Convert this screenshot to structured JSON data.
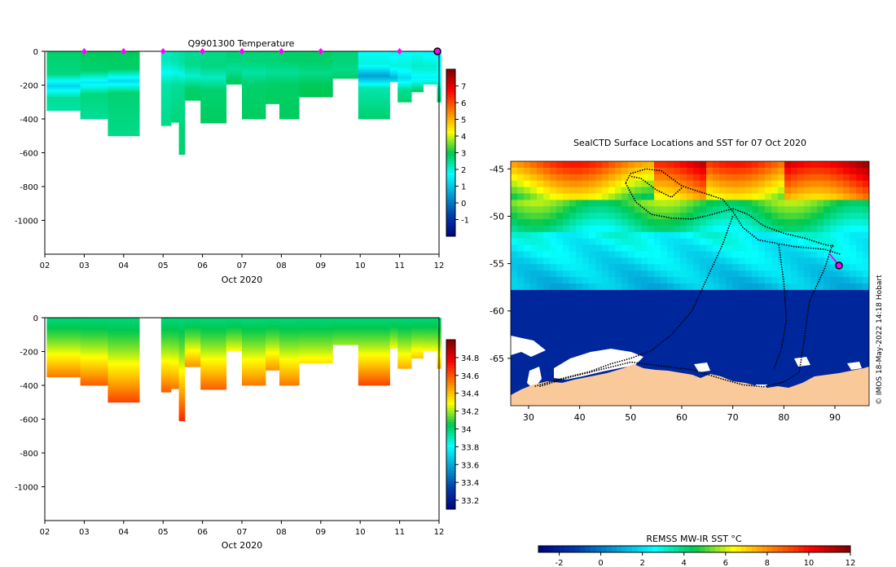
{
  "figure": {
    "credit": "© IMOS 18-May-2022 14:18 Hobart"
  },
  "chart_data": [
    {
      "id": "temperature_section",
      "type": "heatmap",
      "title": "Q9901300  Temperature",
      "xlabel": "Oct 2020",
      "ylabel": "",
      "xlim": [
        2,
        12
      ],
      "ylim": [
        -1200,
        0
      ],
      "x_ticks": [
        2,
        3,
        4,
        5,
        6,
        7,
        8,
        9,
        10,
        11,
        12
      ],
      "x_tick_labels": [
        "02",
        "03",
        "04",
        "05",
        "06",
        "07",
        "08",
        "09",
        "10",
        "11",
        "12"
      ],
      "y_ticks": [
        0,
        -200,
        -400,
        -600,
        -800,
        -1000
      ],
      "y_tick_labels": [
        "0",
        "-200",
        "-400",
        "-600",
        "-800",
        "-1000"
      ],
      "profile_markers_x": [
        3,
        4,
        5,
        6,
        7,
        8,
        9,
        11
      ],
      "profile_marker_color": "#ff00ff",
      "current_profile_x": 12,
      "casts": [
        {
          "x0": 2.05,
          "x1": 2.9,
          "depth": 350,
          "surf": 2.8,
          "deep": 2.4,
          "min": 1.2,
          "min_depth": 200
        },
        {
          "x0": 2.9,
          "x1": 3.6,
          "depth": 400,
          "surf": 2.9,
          "deep": 2.5,
          "min": 1.5,
          "min_depth": 180
        },
        {
          "x0": 3.6,
          "x1": 4.4,
          "depth": 500,
          "surf": 2.9,
          "deep": 2.6,
          "min": 1.3,
          "min_depth": 170
        },
        {
          "x0": 4.95,
          "x1": 5.2,
          "depth": 440,
          "surf": 2.2,
          "deep": 2.6,
          "min": 1.8,
          "min_depth": 120
        },
        {
          "x0": 5.2,
          "x1": 5.4,
          "depth": 420,
          "surf": 2.3,
          "deep": 2.7,
          "min": 1.9,
          "min_depth": 120
        },
        {
          "x0": 5.4,
          "x1": 5.55,
          "depth": 610,
          "surf": 2.4,
          "deep": 2.8,
          "min": 1.9,
          "min_depth": 130
        },
        {
          "x0": 5.55,
          "x1": 5.95,
          "depth": 290,
          "surf": 2.5,
          "deep": 2.9,
          "min": 2.1,
          "min_depth": 140
        },
        {
          "x0": 5.95,
          "x1": 6.6,
          "depth": 425,
          "surf": 2.6,
          "deep": 2.9,
          "min": 2.2,
          "min_depth": 150
        },
        {
          "x0": 6.6,
          "x1": 7.0,
          "depth": 195,
          "surf": 2.7,
          "deep": 2.9,
          "min": 2.5,
          "min_depth": 100
        },
        {
          "x0": 7.0,
          "x1": 7.6,
          "depth": 400,
          "surf": 2.7,
          "deep": 2.9,
          "min": 2.4,
          "min_depth": 120
        },
        {
          "x0": 7.6,
          "x1": 7.95,
          "depth": 310,
          "surf": 2.7,
          "deep": 2.9,
          "min": 2.5,
          "min_depth": 120
        },
        {
          "x0": 7.95,
          "x1": 8.45,
          "depth": 400,
          "surf": 2.8,
          "deep": 2.9,
          "min": 2.5,
          "min_depth": 120
        },
        {
          "x0": 8.45,
          "x1": 9.3,
          "depth": 270,
          "surf": 2.8,
          "deep": 3.0,
          "min": 2.6,
          "min_depth": 120
        },
        {
          "x0": 9.3,
          "x1": 9.95,
          "depth": 160,
          "surf": 2.7,
          "deep": 2.9,
          "min": 2.6,
          "min_depth": 100
        },
        {
          "x0": 9.95,
          "x1": 10.75,
          "depth": 400,
          "surf": 1.8,
          "deep": 2.8,
          "min": 0.5,
          "min_depth": 140
        },
        {
          "x0": 10.75,
          "x1": 10.95,
          "depth": 180,
          "surf": 1.6,
          "deep": 2.5,
          "min": 0.8,
          "min_depth": 150
        },
        {
          "x0": 10.95,
          "x1": 11.3,
          "depth": 300,
          "surf": 1.7,
          "deep": 2.8,
          "min": 1.3,
          "min_depth": 150
        },
        {
          "x0": 11.3,
          "x1": 11.6,
          "depth": 240,
          "surf": 1.8,
          "deep": 2.8,
          "min": 1.6,
          "min_depth": 150
        },
        {
          "x0": 11.6,
          "x1": 11.95,
          "depth": 195,
          "surf": 1.6,
          "deep": 2.8,
          "min": 1.6,
          "min_depth": 150
        },
        {
          "x0": 11.95,
          "x1": 12.05,
          "depth": 300,
          "surf": 1.5,
          "deep": 2.8,
          "min": 1.6,
          "min_depth": 150
        }
      ],
      "colorbar": {
        "min": -2,
        "max": 8,
        "ticks": [
          -1,
          0,
          1,
          2,
          3,
          4,
          5,
          6,
          7
        ],
        "tick_labels": [
          "-1",
          "0",
          "1",
          "2",
          "3",
          "4",
          "5",
          "6",
          "7"
        ]
      }
    },
    {
      "id": "salinity_section",
      "type": "heatmap",
      "title": "",
      "xlabel": "Oct 2020",
      "ylabel": "",
      "xlim": [
        2,
        12
      ],
      "ylim": [
        -1200,
        0
      ],
      "x_ticks": [
        2,
        3,
        4,
        5,
        6,
        7,
        8,
        9,
        10,
        11,
        12
      ],
      "x_tick_labels": [
        "02",
        "03",
        "04",
        "05",
        "06",
        "07",
        "08",
        "09",
        "10",
        "11",
        "12"
      ],
      "y_ticks": [
        0,
        -200,
        -400,
        -600,
        -800,
        -1000
      ],
      "y_tick_labels": [
        "0",
        "-200",
        "-400",
        "-600",
        "-800",
        "-1000"
      ],
      "casts": [
        {
          "x0": 2.05,
          "x1": 2.9,
          "depth": 350,
          "surf": 34.0,
          "deep": 34.55
        },
        {
          "x0": 2.9,
          "x1": 3.6,
          "depth": 400,
          "surf": 34.0,
          "deep": 34.6
        },
        {
          "x0": 3.6,
          "x1": 4.4,
          "depth": 500,
          "surf": 34.0,
          "deep": 34.65
        },
        {
          "x0": 4.95,
          "x1": 5.2,
          "depth": 440,
          "surf": 34.0,
          "deep": 34.6
        },
        {
          "x0": 5.2,
          "x1": 5.4,
          "depth": 420,
          "surf": 34.0,
          "deep": 34.55
        },
        {
          "x0": 5.4,
          "x1": 5.55,
          "depth": 610,
          "surf": 34.0,
          "deep": 34.7
        },
        {
          "x0": 5.55,
          "x1": 5.95,
          "depth": 290,
          "surf": 34.0,
          "deep": 34.5
        },
        {
          "x0": 5.95,
          "x1": 6.6,
          "depth": 425,
          "surf": 34.0,
          "deep": 34.6
        },
        {
          "x0": 6.6,
          "x1": 7.0,
          "depth": 195,
          "surf": 34.0,
          "deep": 34.3
        },
        {
          "x0": 7.0,
          "x1": 7.6,
          "depth": 400,
          "surf": 34.0,
          "deep": 34.55
        },
        {
          "x0": 7.6,
          "x1": 7.95,
          "depth": 310,
          "surf": 34.0,
          "deep": 34.5
        },
        {
          "x0": 7.95,
          "x1": 8.45,
          "depth": 400,
          "surf": 34.0,
          "deep": 34.55
        },
        {
          "x0": 8.45,
          "x1": 9.3,
          "depth": 270,
          "surf": 34.0,
          "deep": 34.35
        },
        {
          "x0": 9.3,
          "x1": 9.95,
          "depth": 160,
          "surf": 34.0,
          "deep": 34.2
        },
        {
          "x0": 9.95,
          "x1": 10.75,
          "depth": 400,
          "surf": 34.0,
          "deep": 34.65
        },
        {
          "x0": 10.75,
          "x1": 10.95,
          "depth": 180,
          "surf": 34.0,
          "deep": 34.3
        },
        {
          "x0": 10.95,
          "x1": 11.3,
          "depth": 300,
          "surf": 34.0,
          "deep": 34.45
        },
        {
          "x0": 11.3,
          "x1": 11.6,
          "depth": 240,
          "surf": 34.0,
          "deep": 34.4
        },
        {
          "x0": 11.6,
          "x1": 11.95,
          "depth": 195,
          "surf": 34.0,
          "deep": 34.3
        },
        {
          "x0": 11.95,
          "x1": 12.05,
          "depth": 300,
          "surf": 34.0,
          "deep": 34.45
        }
      ],
      "colorbar": {
        "min": 33.1,
        "max": 35.0,
        "ticks": [
          33.2,
          33.4,
          33.6,
          33.8,
          34,
          34.2,
          34.4,
          34.6,
          34.8
        ],
        "tick_labels": [
          "33.2",
          "33.4",
          "33.6",
          "33.8",
          "34",
          "34.2",
          "34.4",
          "34.6",
          "34.8"
        ]
      }
    },
    {
      "id": "sst_map",
      "type": "heatmap",
      "title": "SealCTD Surface Locations and SST for 07 Oct 2020",
      "xlabel": "",
      "ylabel": "",
      "xlim": [
        26,
        97
      ],
      "ylim": [
        -70,
        -44
      ],
      "x_ticks": [
        30,
        40,
        50,
        60,
        70,
        80,
        90
      ],
      "x_tick_labels": [
        "30",
        "40",
        "50",
        "60",
        "70",
        "80",
        "90"
      ],
      "y_ticks": [
        -45,
        -50,
        -55,
        -60,
        -65
      ],
      "y_tick_labels": [
        "-45",
        "-50",
        "-55",
        "-60",
        "-65"
      ],
      "land_color": "#f9c99a",
      "ice_color": "#ffffff",
      "track_color": "#000000",
      "current_position": [
        90.8,
        -55.2
      ],
      "colorbar": {
        "label": "REMSS MW-IR SST °C",
        "min": -3,
        "max": 12,
        "ticks": [
          -2,
          0,
          2,
          4,
          6,
          8,
          10,
          12
        ],
        "tick_labels": [
          "-2",
          "0",
          "2",
          "4",
          "6",
          "8",
          "10",
          "12"
        ]
      }
    }
  ]
}
